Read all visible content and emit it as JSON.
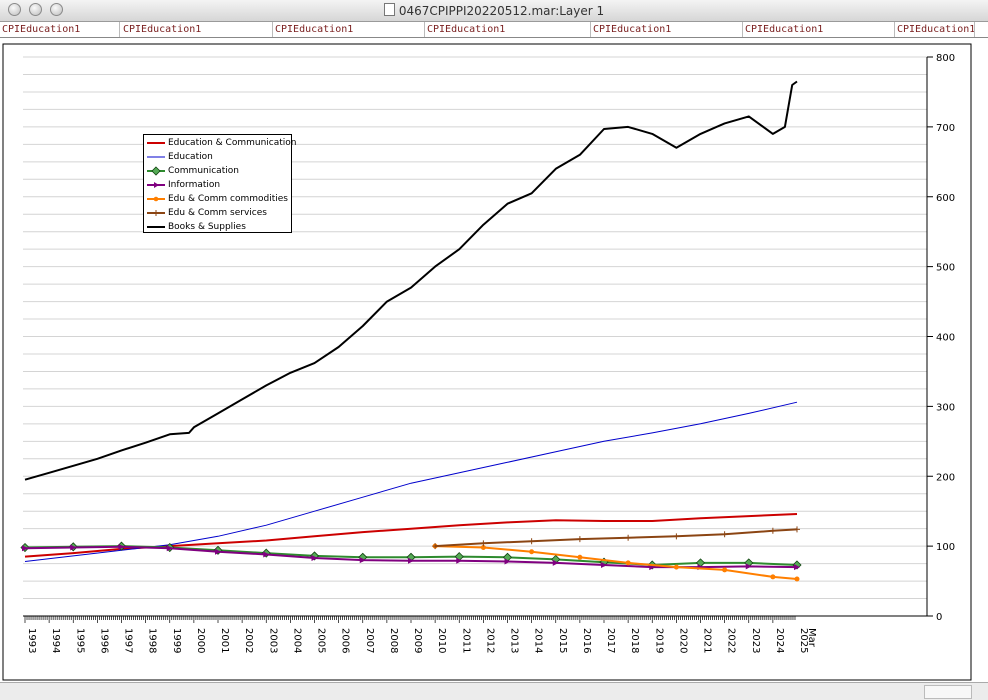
{
  "window": {
    "title": "0467CPIPPI20220512.mar:Layer 1"
  },
  "tabs": [
    "CPIEducation1",
    "CPIEducation1",
    "CPIEducation1",
    "CPIEducation1",
    "CPIEducation1",
    "CPIEducation1",
    "CPIEducation1"
  ],
  "chart_data": {
    "type": "line",
    "title": "",
    "xlabel": "",
    "ylabel": "",
    "ylim": [
      0,
      800
    ],
    "y_ticks": [
      0,
      100,
      200,
      300,
      400,
      500,
      600,
      700,
      800
    ],
    "x_ticks": [
      "1993",
      "1994",
      "1995",
      "1996",
      "1997",
      "1998",
      "1999",
      "2000",
      "2001",
      "2002",
      "2003",
      "2004",
      "2005",
      "2006",
      "2007",
      "2008",
      "2009",
      "2010",
      "2011",
      "2012",
      "2013",
      "2014",
      "2015",
      "2016",
      "2017",
      "2018",
      "2019",
      "2020",
      "2021",
      "2022",
      "2023",
      "2024",
      "2025",
      "Mar"
    ],
    "grid": "horizontal",
    "legend_position": "top-left",
    "x_years": [
      1993,
      1994,
      1995,
      1996,
      1997,
      1998,
      1999,
      2000,
      2001,
      2002,
      2003,
      2004,
      2005,
      2006,
      2007,
      2008,
      2009,
      2010,
      2011,
      2012,
      2013,
      2014,
      2015,
      2016,
      2017,
      2018,
      2019,
      2020,
      2021,
      2022,
      2023,
      2024,
      2025
    ],
    "series": [
      {
        "name": "Education & Communication",
        "color": "#cc0000",
        "marker": "none",
        "x": [
          1993,
          1995,
          1997,
          1999,
          2001,
          2003,
          2005,
          2007,
          2009,
          2011,
          2013,
          2015,
          2017,
          2019,
          2021,
          2023,
          2025
        ],
        "values": [
          85,
          90,
          96,
          100,
          104,
          108,
          114,
          120,
          125,
          130,
          134,
          137,
          136,
          136,
          140,
          143,
          146
        ]
      },
      {
        "name": "Education",
        "color": "#0000cc",
        "marker": "none",
        "x": [
          1993,
          1995,
          1997,
          1999,
          2001,
          2003,
          2005,
          2007,
          2009,
          2011,
          2013,
          2015,
          2017,
          2019,
          2021,
          2023,
          2025
        ],
        "values": [
          78,
          86,
          94,
          102,
          114,
          130,
          150,
          170,
          190,
          205,
          220,
          235,
          250,
          262,
          275,
          290,
          306
        ]
      },
      {
        "name": "Communication",
        "color": "#2e8b2e",
        "marker": "diamond",
        "x": [
          1993,
          1995,
          1997,
          1999,
          2001,
          2003,
          2005,
          2007,
          2009,
          2011,
          2013,
          2015,
          2017,
          2019,
          2021,
          2023,
          2025
        ],
        "values": [
          98,
          99,
          100,
          98,
          94,
          90,
          86,
          84,
          84,
          85,
          84,
          81,
          77,
          73,
          76,
          76,
          73
        ]
      },
      {
        "name": "Information",
        "color": "#800080",
        "marker": "triangle-right",
        "x": [
          1993,
          1995,
          1997,
          1999,
          2001,
          2003,
          2005,
          2007,
          2009,
          2011,
          2013,
          2015,
          2017,
          2019,
          2021,
          2023,
          2025
        ],
        "values": [
          97,
          98,
          99,
          97,
          92,
          88,
          83,
          80,
          79,
          79,
          78,
          76,
          73,
          70,
          70,
          71,
          70
        ]
      },
      {
        "name": "Edu & Comm commodities",
        "color": "#ff7f00",
        "marker": "dot",
        "x": [
          2010,
          2012,
          2014,
          2016,
          2018,
          2020,
          2022,
          2024,
          2025
        ],
        "values": [
          100,
          98,
          92,
          84,
          76,
          70,
          66,
          56,
          53
        ]
      },
      {
        "name": "Edu & Comm services",
        "color": "#8b4513",
        "marker": "plus",
        "x": [
          2010,
          2012,
          2014,
          2016,
          2018,
          2020,
          2022,
          2024,
          2025
        ],
        "values": [
          100,
          104,
          107,
          110,
          112,
          114,
          117,
          122,
          124
        ]
      },
      {
        "name": "Books & Supplies",
        "color": "#000000",
        "marker": "none",
        "x": [
          1993,
          1994,
          1995,
          1996,
          1997,
          1998,
          1999,
          1999.8,
          2000,
          2001,
          2002,
          2003,
          2004,
          2005,
          2006,
          2007,
          2008,
          2009,
          2010,
          2011,
          2012,
          2013,
          2014,
          2015,
          2016,
          2017,
          2018,
          2019,
          2020,
          2021,
          2022,
          2023,
          2024,
          2024.5,
          2024.8,
          2025
        ],
        "values": [
          195,
          205,
          215,
          225,
          237,
          248,
          260,
          262,
          270,
          290,
          310,
          330,
          348,
          362,
          385,
          415,
          450,
          470,
          500,
          525,
          560,
          590,
          605,
          640,
          660,
          697,
          700,
          690,
          670,
          690,
          705,
          715,
          690,
          700,
          760,
          765
        ]
      }
    ]
  },
  "statusbar": {}
}
